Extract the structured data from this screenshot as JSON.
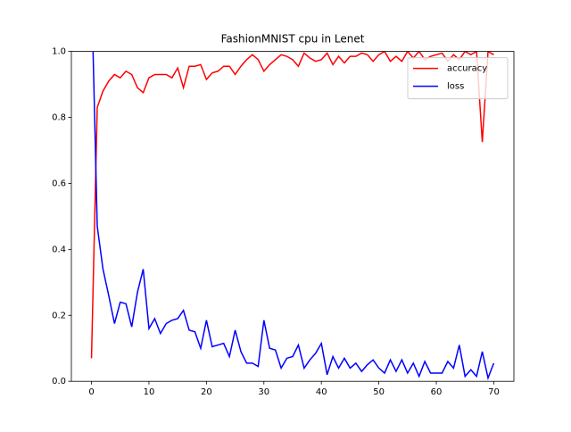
{
  "chart_data": {
    "type": "line",
    "title": "FashionMNIST cpu in Lenet",
    "x": [
      0,
      1,
      2,
      3,
      4,
      5,
      6,
      7,
      8,
      9,
      10,
      11,
      12,
      13,
      14,
      15,
      16,
      17,
      18,
      19,
      20,
      21,
      22,
      23,
      24,
      25,
      26,
      27,
      28,
      29,
      30,
      31,
      32,
      33,
      34,
      35,
      36,
      37,
      38,
      39,
      40,
      41,
      42,
      43,
      44,
      45,
      46,
      47,
      48,
      49,
      50,
      51,
      52,
      53,
      54,
      55,
      56,
      57,
      58,
      59,
      60,
      61,
      62,
      63,
      64,
      65,
      66,
      67,
      68,
      69,
      70
    ],
    "series": [
      {
        "name": "accuracy",
        "color": "#ff0000",
        "values": [
          0.07,
          0.83,
          0.88,
          0.91,
          0.93,
          0.92,
          0.94,
          0.93,
          0.89,
          0.875,
          0.92,
          0.93,
          0.93,
          0.93,
          0.92,
          0.95,
          0.89,
          0.955,
          0.955,
          0.96,
          0.915,
          0.935,
          0.94,
          0.955,
          0.955,
          0.93,
          0.955,
          0.975,
          0.99,
          0.975,
          0.94,
          0.96,
          0.975,
          0.99,
          0.985,
          0.975,
          0.955,
          0.995,
          0.98,
          0.97,
          0.975,
          0.995,
          0.96,
          0.985,
          0.965,
          0.985,
          0.985,
          0.995,
          0.99,
          0.97,
          0.99,
          1.0,
          0.97,
          0.985,
          0.97,
          1.0,
          0.98,
          1.0,
          0.975,
          0.985,
          0.99,
          0.995,
          0.97,
          0.99,
          0.975,
          1.0,
          0.99,
          1.0,
          0.725,
          1.0,
          0.99
        ]
      },
      {
        "name": "loss",
        "color": "#0000ff",
        "values": [
          1.2,
          0.47,
          0.34,
          0.26,
          0.175,
          0.24,
          0.235,
          0.165,
          0.27,
          0.34,
          0.16,
          0.19,
          0.145,
          0.175,
          0.185,
          0.19,
          0.215,
          0.155,
          0.15,
          0.1,
          0.185,
          0.105,
          0.11,
          0.115,
          0.075,
          0.155,
          0.09,
          0.055,
          0.055,
          0.045,
          0.185,
          0.1,
          0.095,
          0.04,
          0.07,
          0.075,
          0.11,
          0.04,
          0.065,
          0.085,
          0.115,
          0.02,
          0.075,
          0.04,
          0.07,
          0.04,
          0.055,
          0.03,
          0.05,
          0.065,
          0.04,
          0.025,
          0.065,
          0.03,
          0.065,
          0.025,
          0.055,
          0.015,
          0.06,
          0.025,
          0.025,
          0.025,
          0.06,
          0.04,
          0.11,
          0.015,
          0.035,
          0.015,
          0.09,
          0.01,
          0.055
        ]
      }
    ],
    "xlim": [
      -3.5,
      73.5
    ],
    "xticks": [
      0,
      10,
      20,
      30,
      40,
      50,
      60,
      70
    ],
    "ylim": [
      0,
      1
    ],
    "yticks": [
      {
        "value": 0,
        "label": "0.0"
      },
      0.2,
      0.4,
      0.6,
      0.8,
      {
        "value": 1,
        "label": "1.0"
      }
    ],
    "legend": "upper right"
  }
}
